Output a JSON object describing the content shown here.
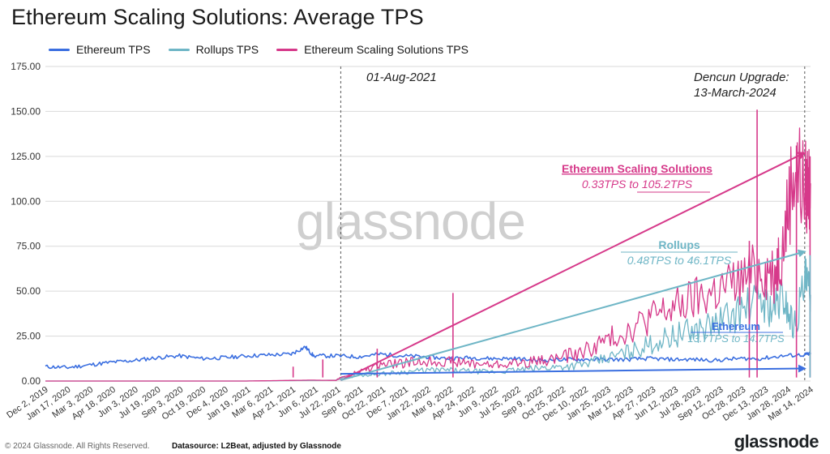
{
  "title": "Ethereum Scaling Solutions: Average TPS",
  "watermark": "glassnode",
  "footer": {
    "copyright": "© 2024 Glassnode. All Rights Reserved.",
    "datasource": "Datasource: L2Beat, adjusted by Glassnode",
    "brand": "glassnode"
  },
  "colors": {
    "ethereum": "#3b6fe0",
    "rollups": "#6fb6c6",
    "scaling": "#d6398a",
    "grid": "#d9d9d9",
    "axis_text": "#333333",
    "vline": "#555555"
  },
  "legend": [
    {
      "name": "Ethereum TPS",
      "color": "#3b6fe0"
    },
    {
      "name": "Rollups TPS",
      "color": "#6fb6c6"
    },
    {
      "name": "Ethereum Scaling Solutions TPS",
      "color": "#d6398a"
    }
  ],
  "annotations": {
    "vline1": "01-Aug-2021",
    "vline2_line1": "Dencun Upgrade:",
    "vline2_line2": "13-March-2024",
    "scaling_title": "Ethereum Scaling Solutions",
    "scaling_sub": "0.33TPS to 105.2TPS",
    "rollups_title": "Rollups",
    "rollups_sub": "0.48TPS to 46.1TPS",
    "eth_title": "Ethereum",
    "eth_sub": "13.7TPS to 14.7TPS"
  },
  "chart_data": {
    "type": "line",
    "ylim": [
      0,
      175
    ],
    "yticks": [
      "0.00",
      "25.00",
      "50.00",
      "75.00",
      "100.00",
      "125.00",
      "150.00",
      "175.00"
    ],
    "grid": true,
    "legend_position": "top-left",
    "x_tick_labels": [
      "Dec 2, 2019",
      "Jan 17, 2020",
      "Mar 3, 2020",
      "Apr 18, 2020",
      "Jun 3, 2020",
      "Jul 19, 2020",
      "Sep 3, 2020",
      "Oct 19, 2020",
      "Dec 4, 2020",
      "Jan 19, 2021",
      "Mar 6, 2021",
      "Apr 21, 2021",
      "Jun 6, 2021",
      "Jul 22, 2021",
      "Sep 6, 2021",
      "Oct 22, 2021",
      "Dec 7, 2021",
      "Jan 22, 2022",
      "Mar 9, 2022",
      "Apr 24, 2022",
      "Jun 9, 2022",
      "Jul 25, 2022",
      "Sep 9, 2022",
      "Oct 25, 2022",
      "Dec 10, 2022",
      "Jan 25, 2023",
      "Mar 12, 2023",
      "Apr 27, 2023",
      "Jun 12, 2023",
      "Jul 28, 2023",
      "Sep 12, 2023",
      "Oct 28, 2023",
      "Dec 13, 2023",
      "Jan 28, 2024",
      "Mar 14, 2024"
    ],
    "vlines": [
      "2021-08-01",
      "2024-03-13"
    ],
    "series": [
      {
        "name": "Ethereum TPS",
        "color": "#3b6fe0",
        "x": [
          "2019-12-02",
          "2020-01-17",
          "2020-03-03",
          "2020-04-18",
          "2020-06-03",
          "2020-07-19",
          "2020-09-03",
          "2020-10-19",
          "2020-12-04",
          "2021-01-19",
          "2021-03-06",
          "2021-04-21",
          "2021-05-20",
          "2021-06-06",
          "2021-07-22",
          "2021-09-06",
          "2021-10-22",
          "2021-12-07",
          "2022-01-22",
          "2022-03-09",
          "2022-04-24",
          "2022-06-09",
          "2022-07-25",
          "2022-09-09",
          "2022-10-25",
          "2022-12-10",
          "2023-01-25",
          "2023-03-12",
          "2023-04-27",
          "2023-06-12",
          "2023-07-28",
          "2023-09-12",
          "2023-10-28",
          "2023-12-13",
          "2024-01-28",
          "2024-03-14",
          "2024-03-25"
        ],
        "values": [
          8,
          7.5,
          9,
          10.5,
          11.5,
          13,
          14,
          12.5,
          13,
          14,
          14.5,
          15,
          19,
          14,
          14,
          13.5,
          15,
          14,
          13.5,
          12.5,
          13,
          12.5,
          12.5,
          11.5,
          12,
          12,
          12,
          12,
          12.5,
          12,
          12,
          11.5,
          12.5,
          12.5,
          14,
          14.7,
          15
        ]
      },
      {
        "name": "Rollups TPS",
        "color": "#6fb6c6",
        "x": [
          "2019-12-02",
          "2020-06-03",
          "2021-01-19",
          "2021-07-22",
          "2021-08-01",
          "2021-09-06",
          "2021-10-22",
          "2021-12-07",
          "2022-01-22",
          "2022-03-09",
          "2022-04-24",
          "2022-06-09",
          "2022-07-25",
          "2022-09-09",
          "2022-10-25",
          "2022-12-10",
          "2023-01-25",
          "2023-03-12",
          "2023-04-27",
          "2023-06-12",
          "2023-07-28",
          "2023-09-12",
          "2023-10-28",
          "2023-12-13",
          "2024-01-10",
          "2024-01-28",
          "2024-02-20",
          "2024-03-14",
          "2024-03-25"
        ],
        "values": [
          0,
          0,
          0,
          0.48,
          1.5,
          3,
          4,
          5,
          6,
          6,
          5.5,
          5,
          6,
          7,
          8,
          9,
          12,
          16,
          20,
          25,
          28,
          32,
          38,
          45,
          40,
          48,
          30,
          55,
          48
        ]
      },
      {
        "name": "Ethereum Scaling Solutions TPS",
        "color": "#d6398a",
        "x": [
          "2019-12-02",
          "2020-06-03",
          "2021-01-19",
          "2021-04-15",
          "2021-06-01",
          "2021-07-22",
          "2021-08-01",
          "2021-09-06",
          "2021-10-22",
          "2021-12-07",
          "2022-01-22",
          "2022-03-09",
          "2022-04-24",
          "2022-06-09",
          "2022-07-25",
          "2022-09-09",
          "2022-10-25",
          "2022-12-10",
          "2023-01-25",
          "2023-03-12",
          "2023-04-27",
          "2023-06-12",
          "2023-07-28",
          "2023-09-12",
          "2023-10-28",
          "2023-12-13",
          "2024-01-10",
          "2024-01-28",
          "2024-02-20",
          "2024-03-14",
          "2024-03-25"
        ],
        "values": [
          0,
          0,
          0,
          0.33,
          0.5,
          0.33,
          2,
          5,
          9,
          10,
          11,
          11,
          10,
          9,
          10,
          11,
          13,
          16,
          22,
          28,
          35,
          40,
          45,
          50,
          55,
          62,
          60,
          75,
          120,
          105.2,
          110
        ]
      }
    ]
  }
}
